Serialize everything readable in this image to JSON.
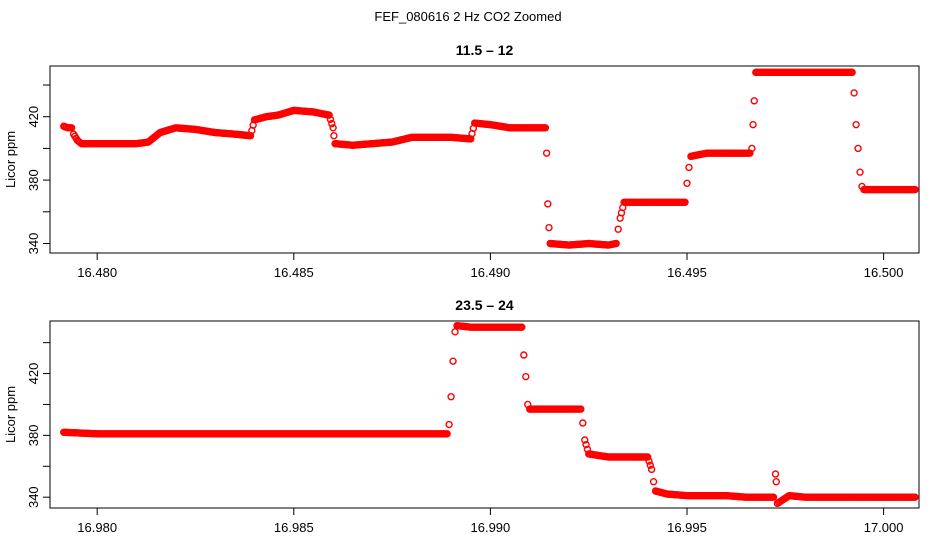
{
  "page_title": "FEF_080616  2 Hz CO2 Zoomed",
  "chart_data": [
    {
      "type": "scatter",
      "title": "11.5 – 12",
      "xlabel": "",
      "ylabel": "Licor ppm",
      "xlim": [
        16.4788,
        16.5009
      ],
      "ylim": [
        334,
        452
      ],
      "x_ticks": [
        "16.480",
        "16.485",
        "16.490",
        "16.495",
        "16.500"
      ],
      "y_ticks": [
        "340",
        "380",
        "420"
      ],
      "y_minor_ticks": [
        360,
        400,
        440
      ],
      "marker": "open-circle",
      "color": "#ff0000",
      "series": [
        {
          "points": [
            [
              16.47915,
              414
            ],
            [
              16.47925,
              413
            ],
            [
              16.47935,
              413
            ],
            [
              16.4794,
              409
            ],
            [
              16.4795,
              405
            ],
            [
              16.4796,
              403
            ],
            [
              16.48,
              403
            ],
            [
              16.4805,
              403
            ],
            [
              16.481,
              403
            ],
            [
              16.4813,
              404
            ],
            [
              16.4816,
              410
            ],
            [
              16.482,
              413
            ],
            [
              16.4825,
              412
            ],
            [
              16.483,
              410
            ],
            [
              16.4835,
              409
            ],
            [
              16.4839,
              408
            ],
            [
              16.484,
              418
            ],
            [
              16.4843,
              420
            ],
            [
              16.4846,
              421
            ],
            [
              16.485,
              424
            ],
            [
              16.4855,
              423
            ],
            [
              16.4859,
              421
            ],
            [
              16.486,
              413
            ],
            [
              16.48602,
              408
            ],
            [
              16.48605,
              403
            ],
            [
              16.4865,
              402
            ],
            [
              16.487,
              403
            ],
            [
              16.4875,
              404
            ],
            [
              16.488,
              407
            ],
            [
              16.4885,
              407
            ],
            [
              16.489,
              407
            ],
            [
              16.4895,
              406
            ],
            [
              16.4896,
              416
            ],
            [
              16.49,
              415
            ],
            [
              16.4905,
              413
            ],
            [
              16.491,
              413
            ],
            [
              16.4914,
              413
            ],
            [
              16.49143,
              397
            ],
            [
              16.49146,
              365
            ],
            [
              16.49149,
              350
            ],
            [
              16.49152,
              340
            ],
            [
              16.492,
              339
            ],
            [
              16.4925,
              340
            ],
            [
              16.493,
              339
            ],
            [
              16.4932,
              340
            ],
            [
              16.49325,
              349
            ],
            [
              16.4933,
              356
            ],
            [
              16.4934,
              366
            ],
            [
              16.494,
              366
            ],
            [
              16.4945,
              366
            ],
            [
              16.49495,
              366
            ],
            [
              16.495,
              378
            ],
            [
              16.49505,
              388
            ],
            [
              16.4951,
              395
            ],
            [
              16.4955,
              397
            ],
            [
              16.496,
              397
            ],
            [
              16.4966,
              397
            ],
            [
              16.49665,
              400
            ],
            [
              16.49668,
              415
            ],
            [
              16.49671,
              430
            ],
            [
              16.49675,
              448
            ],
            [
              16.497,
              448
            ],
            [
              16.4975,
              448
            ],
            [
              16.498,
              448
            ],
            [
              16.4985,
              448
            ],
            [
              16.4992,
              448
            ],
            [
              16.49925,
              435
            ],
            [
              16.4993,
              415
            ],
            [
              16.49935,
              400
            ],
            [
              16.4994,
              385
            ],
            [
              16.49945,
              376
            ],
            [
              16.4995,
              374
            ],
            [
              16.5,
              374
            ],
            [
              16.5005,
              374
            ],
            [
              16.5008,
              374
            ]
          ]
        }
      ]
    },
    {
      "type": "scatter",
      "title": "23.5 – 24",
      "xlabel": "",
      "ylabel": "Licor ppm",
      "xlim": [
        16.9788,
        17.0009
      ],
      "ylim": [
        333,
        454
      ],
      "x_ticks": [
        "16.980",
        "16.985",
        "16.990",
        "16.995",
        "17.000"
      ],
      "y_ticks": [
        "340",
        "380",
        "420"
      ],
      "y_minor_ticks": [
        360,
        400,
        440
      ],
      "marker": "open-circle",
      "color": "#ff0000",
      "series": [
        {
          "points": [
            [
              16.97915,
              382
            ],
            [
              16.98,
              381
            ],
            [
              16.981,
              381
            ],
            [
              16.982,
              381
            ],
            [
              16.983,
              381
            ],
            [
              16.984,
              381
            ],
            [
              16.985,
              381
            ],
            [
              16.986,
              381
            ],
            [
              16.987,
              381
            ],
            [
              16.988,
              381
            ],
            [
              16.9889,
              381
            ],
            [
              16.98895,
              387
            ],
            [
              16.989,
              405
            ],
            [
              16.98905,
              428
            ],
            [
              16.9891,
              447
            ],
            [
              16.98915,
              451
            ],
            [
              16.9895,
              450
            ],
            [
              16.99,
              450
            ],
            [
              16.9905,
              450
            ],
            [
              16.9908,
              450
            ],
            [
              16.99085,
              432
            ],
            [
              16.9909,
              418
            ],
            [
              16.99095,
              400
            ],
            [
              16.991,
              397
            ],
            [
              16.9915,
              397
            ],
            [
              16.992,
              397
            ],
            [
              16.9923,
              397
            ],
            [
              16.99235,
              388
            ],
            [
              16.9924,
              377
            ],
            [
              16.9925,
              368
            ],
            [
              16.993,
              366
            ],
            [
              16.9935,
              366
            ],
            [
              16.994,
              366
            ],
            [
              16.9941,
              358
            ],
            [
              16.99415,
              350
            ],
            [
              16.9942,
              344
            ],
            [
              16.9945,
              342
            ],
            [
              16.995,
              341
            ],
            [
              16.9955,
              341
            ],
            [
              16.996,
              341
            ],
            [
              16.9965,
              340
            ],
            [
              16.9972,
              340
            ],
            [
              16.99725,
              355
            ],
            [
              16.99727,
              350
            ],
            [
              16.9973,
              336
            ],
            [
              16.9976,
              341
            ],
            [
              16.998,
              340
            ],
            [
              16.9985,
              340
            ],
            [
              16.999,
              340
            ],
            [
              16.9995,
              340
            ],
            [
              17.0008,
              340
            ]
          ]
        }
      ]
    }
  ]
}
